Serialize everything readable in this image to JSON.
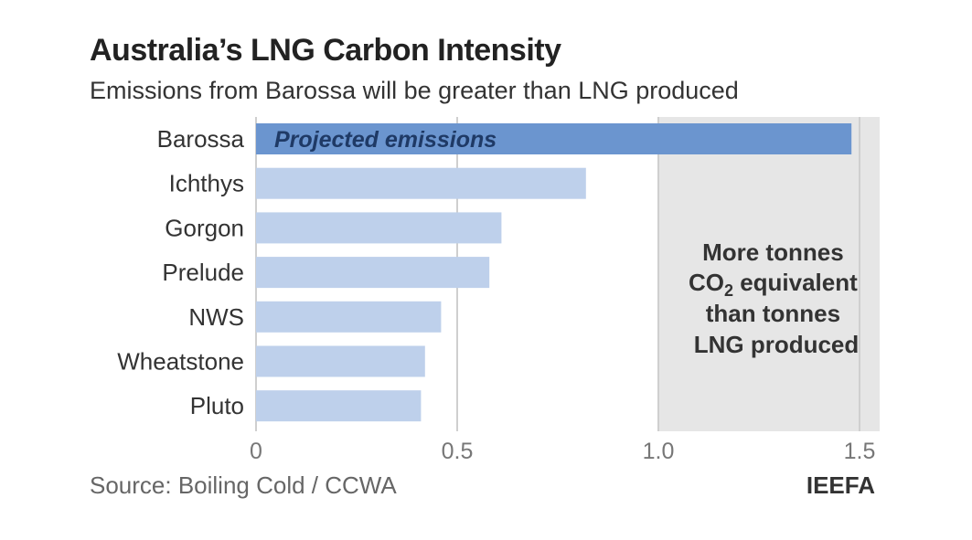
{
  "header": {
    "title": "Australia’s LNG Carbon Intensity",
    "subtitle": "Emissions from Barossa will be greater than LNG produced"
  },
  "footer": {
    "source": "Source: Boiling Cold / CCWA",
    "brand": "IEEFA"
  },
  "colors": {
    "highlight_bar": "#6b95cf",
    "bar": "#bed0eb",
    "shade": "#e6e6e6",
    "grid": "#cfcfcf"
  },
  "chart_data": {
    "type": "bar",
    "orientation": "horizontal",
    "title": "Australia’s LNG Carbon Intensity",
    "subtitle": "Emissions from Barossa will be greater than LNG produced",
    "categories": [
      "Barossa",
      "Ichthys",
      "Gorgon",
      "Prelude",
      "NWS",
      "Wheatstone",
      "Pluto"
    ],
    "values": [
      1.48,
      0.82,
      0.61,
      0.58,
      0.46,
      0.42,
      0.41
    ],
    "highlight": "Barossa",
    "bar_annotation": "Projected emissions",
    "xlim": [
      0,
      1.55
    ],
    "xticks": [
      0,
      0.5,
      1.0,
      1.5
    ],
    "xtick_labels": [
      "0",
      "0.5",
      "1.0",
      "1.5"
    ],
    "shaded_region": {
      "from": 1.0,
      "to": 1.55,
      "label_lines": [
        "More tonnes",
        "CO",
        "2",
        " equivalent",
        "than tonnes",
        "LNG produced"
      ]
    },
    "xlabel": "",
    "ylabel": "",
    "grid": true
  }
}
